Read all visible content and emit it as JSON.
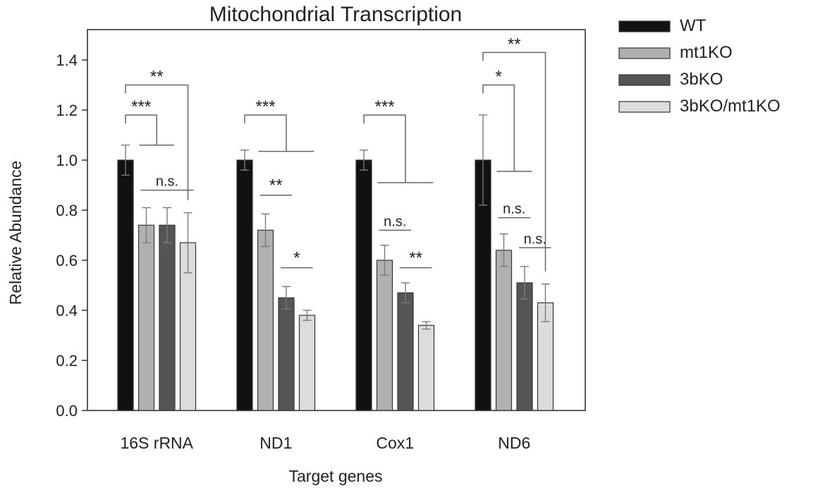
{
  "chart_data": {
    "type": "bar",
    "title": "Mitochondrial Transcription",
    "xlabel": "Target genes",
    "ylabel": "Relative Abundance",
    "ylim": [
      0,
      1.5
    ],
    "yticks": [
      "0.0",
      "0.2",
      "0.4",
      "0.6",
      "0.8",
      "1.0",
      "1.2",
      "1.4"
    ],
    "categories": [
      "16S rRNA",
      "ND1",
      "Cox1",
      "ND6"
    ],
    "series": [
      {
        "name": "WT",
        "color": "#111111",
        "values": [
          1.0,
          1.0,
          1.0,
          1.0
        ],
        "errors": [
          0.06,
          0.04,
          0.04,
          0.18
        ]
      },
      {
        "name": "mt1KO",
        "color": "#b0b0b0",
        "values": [
          0.74,
          0.72,
          0.6,
          0.64
        ],
        "errors": [
          0.07,
          0.065,
          0.06,
          0.065
        ]
      },
      {
        "name": "3bKO",
        "color": "#555555",
        "values": [
          0.74,
          0.45,
          0.47,
          0.51
        ],
        "errors": [
          0.07,
          0.045,
          0.04,
          0.065
        ]
      },
      {
        "name": "3bKO/mt1KO",
        "color": "#dcdcdc",
        "values": [
          0.67,
          0.38,
          0.34,
          0.43
        ],
        "errors": [
          0.12,
          0.02,
          0.015,
          0.075
        ]
      }
    ],
    "legend": "top-right",
    "grid": false,
    "significance": [
      {
        "category": 0,
        "type": "bracket",
        "from": 0,
        "to": [
          1,
          2
        ],
        "label": "***",
        "y": 1.18
      },
      {
        "category": 0,
        "type": "bracket",
        "from": 0,
        "to": [
          3
        ],
        "label": "**",
        "y": 1.3
      },
      {
        "category": 0,
        "type": "line",
        "span": [
          1,
          3
        ],
        "label": "n.s.",
        "y": 0.88
      },
      {
        "category": 1,
        "type": "bracket",
        "from": 0,
        "to": [
          1,
          2,
          3
        ],
        "label": "***",
        "y": 1.18
      },
      {
        "category": 1,
        "type": "line",
        "span": [
          1,
          2
        ],
        "label": "**",
        "y": 0.86
      },
      {
        "category": 1,
        "type": "line",
        "span": [
          2,
          3
        ],
        "label": "*",
        "y": 0.57
      },
      {
        "category": 2,
        "type": "bracket",
        "from": 0,
        "to": [
          1,
          2,
          3
        ],
        "label": "***",
        "y": 1.18
      },
      {
        "category": 2,
        "type": "line",
        "span": [
          1,
          2
        ],
        "label": "n.s.",
        "y": 0.72
      },
      {
        "category": 2,
        "type": "line",
        "span": [
          2,
          3
        ],
        "label": "**",
        "y": 0.57
      },
      {
        "category": 3,
        "type": "bracket",
        "from": 0,
        "to": [
          1,
          2
        ],
        "label": "*",
        "y": 1.3
      },
      {
        "category": 3,
        "type": "bracket",
        "from": 0,
        "to": [
          3
        ],
        "label": "**",
        "y": 1.43
      },
      {
        "category": 3,
        "type": "line",
        "span": [
          1,
          2
        ],
        "label": "n.s.",
        "y": 0.77
      },
      {
        "category": 3,
        "type": "line",
        "span": [
          2,
          3
        ],
        "label": "n.s.",
        "y": 0.65
      }
    ]
  }
}
